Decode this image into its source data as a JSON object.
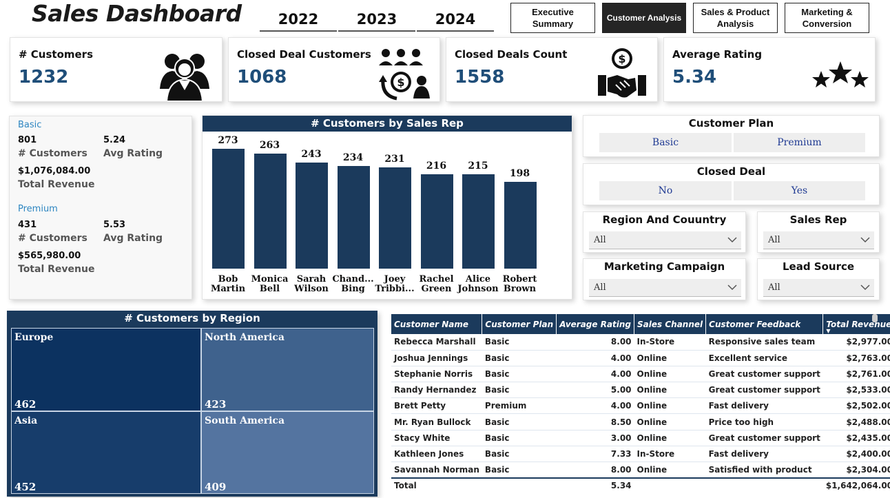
{
  "header": {
    "title": "Sales Dashboard",
    "years": [
      "2022",
      "2023",
      "2024"
    ],
    "nav": [
      {
        "label": "Executive Summary",
        "active": false
      },
      {
        "label": "Customer Analysis",
        "active": true
      },
      {
        "label": "Sales & Product Analysis",
        "active": false
      },
      {
        "label": "Marketing & Conversion",
        "active": false
      }
    ]
  },
  "kpis": [
    {
      "label": "# Customers",
      "value": "1232",
      "icon": "customers-group-icon"
    },
    {
      "label": "Closed Deal Customers",
      "value": "1068",
      "icon": "customer-dollar-cycle-icon"
    },
    {
      "label": "Closed Deals Count",
      "value": "1558",
      "icon": "handshake-dollar-icon"
    },
    {
      "label": "Average Rating",
      "value": "5.34",
      "icon": "stars-icon"
    }
  ],
  "plans": [
    {
      "name": "Basic",
      "customers": "801",
      "customers_label": "# Customers",
      "rating": "5.24",
      "rating_label": "Avg Rating",
      "revenue": "$1,076,084.00",
      "revenue_label": "Total Revenue"
    },
    {
      "name": "Premium",
      "customers": "431",
      "customers_label": "# Customers",
      "rating": "5.53",
      "rating_label": "Avg Rating",
      "revenue": "$565,980.00",
      "revenue_label": "Total Revenue"
    }
  ],
  "chart_data": [
    {
      "type": "bar",
      "title": "# Customers by Sales Rep",
      "categories": [
        "Bob Martin",
        "Monica Bell",
        "Sarah Wilson",
        "Chand... Bing",
        "Joey Tribbi...",
        "Rachel Green",
        "Alice Johnson",
        "Robert Brown"
      ],
      "values": [
        273,
        263,
        243,
        234,
        231,
        216,
        215,
        198
      ],
      "xlabel": "",
      "ylabel": "",
      "ylim": [
        0,
        280
      ]
    },
    {
      "type": "treemap",
      "title": "# Customers by Region",
      "categories": [
        "Europe",
        "North America",
        "Asia",
        "South America"
      ],
      "values": [
        462,
        423,
        452,
        409
      ]
    }
  ],
  "slicers": {
    "customer_plan": {
      "title": "Customer Plan",
      "options": [
        "Basic",
        "Premium"
      ]
    },
    "closed_deal": {
      "title": "Closed Deal",
      "options": [
        "No",
        "Yes"
      ]
    },
    "region": {
      "title": "Region And Couuntry",
      "value": "All"
    },
    "sales_rep": {
      "title": "Sales Rep",
      "value": "All"
    },
    "campaign": {
      "title": "Marketing Campaign",
      "value": "All"
    },
    "lead_source": {
      "title": "Lead Source",
      "value": "All"
    }
  },
  "table": {
    "columns": [
      "Customer Name",
      "Customer Plan",
      "Average Rating",
      "Sales Channel",
      "Customer Feedback",
      "Total Revenue"
    ],
    "rows": [
      [
        "Rebecca Marshall",
        "Basic",
        "8.00",
        "In-Store",
        "Responsive sales team",
        "$2,977.00"
      ],
      [
        "Joshua Jennings",
        "Basic",
        "4.00",
        "Online",
        "Excellent service",
        "$2,763.00"
      ],
      [
        "Stephanie Norris",
        "Basic",
        "4.00",
        "Online",
        "Great customer support",
        "$2,761.00"
      ],
      [
        "Randy Hernandez",
        "Basic",
        "5.00",
        "Online",
        "Great customer support",
        "$2,533.00"
      ],
      [
        "Brett Petty",
        "Premium",
        "4.00",
        "Online",
        "Fast delivery",
        "$2,502.00"
      ],
      [
        "Mr. Ryan Bullock",
        "Basic",
        "8.50",
        "Online",
        "Price too high",
        "$2,488.00"
      ],
      [
        "Stacy White",
        "Basic",
        "3.00",
        "Online",
        "Great customer support",
        "$2,435.00"
      ],
      [
        "Kathleen Jones",
        "Basic",
        "7.33",
        "In-Store",
        "Fast delivery",
        "$2,400.00"
      ],
      [
        "Savannah Norman",
        "Basic",
        "8.00",
        "Online",
        "Satisfied with product",
        "$2,304.00"
      ]
    ],
    "total": {
      "label": "Total",
      "rating": "5.34",
      "revenue": "$1,642,064.00"
    }
  },
  "colors": {
    "navy": "#1b3a5c",
    "accent": "#1f4e79",
    "link": "#2e86c1"
  }
}
